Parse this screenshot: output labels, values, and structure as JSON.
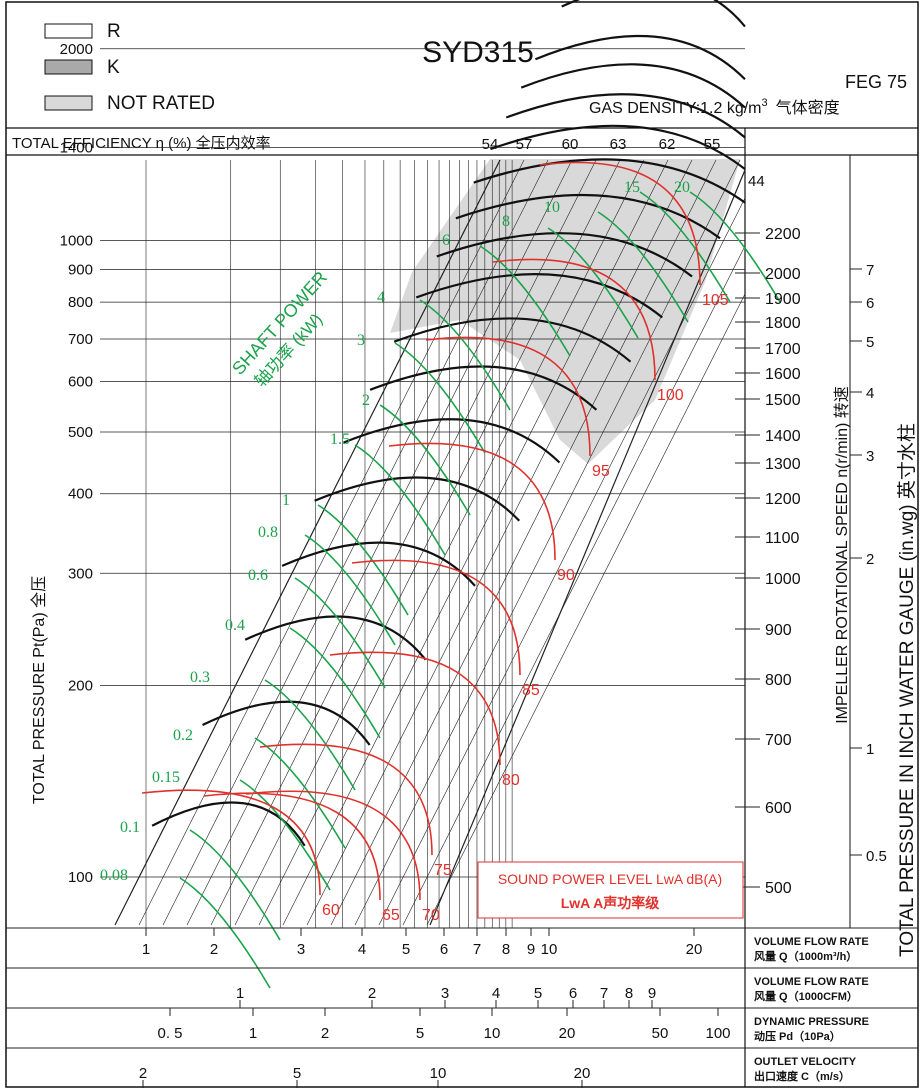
{
  "legend": {
    "items": [
      {
        "label": "R",
        "fill": "#ffffff"
      },
      {
        "label": "K",
        "fill": "#a9a9a9"
      },
      {
        "label": "NOT RATED",
        "fill": "#d9d9d9"
      }
    ]
  },
  "header": {
    "title": "SYD315",
    "code": "FEG 75",
    "gas_density_prefix": "GAS DENSITY:1.2 kg/m",
    "gas_density_sup": "3",
    "gas_density_suffix": "气体密度"
  },
  "efficiency_row": {
    "label": "TOTAL EFFICIENCY η (%) 全压内效率",
    "values": [
      "54",
      "57",
      "60",
      "63",
      "62",
      "55"
    ]
  },
  "colors": {
    "speed_curve": "#111111",
    "shaft_power": "#1aa34a",
    "sound_level": "#e0312c",
    "not_rated_fill": "#d9d9d9",
    "grid": "#222222"
  },
  "chart_data": {
    "type": "line",
    "title": "SYD315",
    "scale": "log-log",
    "xlabel": "VOLUME FLOW RATE 风量 Q（1000m³/h）",
    "ylabel": "TOTAL PRESSURE Pt(Pa) 全压",
    "left_ticks": [
      "2000",
      "1400",
      "1000",
      "900",
      "800",
      "700",
      "600",
      "500",
      "400",
      "300",
      "200",
      "100"
    ],
    "speed_axis": {
      "label": "IMPELLER ROTATIONAL SPEED n(r/min) 转速",
      "top_mark": "44",
      "ticks": [
        "2200",
        "2000",
        "1900",
        "1800",
        "1700",
        "1600",
        "1500",
        "1400",
        "1300",
        "1200",
        "1100",
        "1000",
        "900",
        "800",
        "700",
        "600",
        "500"
      ]
    },
    "water_gauge_axis": {
      "label": "TOTAL PRESSURE IN INCH WATER GAUGE (in.wg) 英寸水柱",
      "ticks": [
        "7",
        "6",
        "5",
        "4",
        "3",
        "2",
        "1",
        "0.5"
      ]
    },
    "shaft_power": {
      "label": "SHAFT POWER",
      "label_cn": "轴功率 (kW)",
      "values": [
        "20",
        "15",
        "10",
        "8",
        "6",
        "4",
        "3",
        "2",
        "1.5",
        "1",
        "0.8",
        "0.6",
        "0.4",
        "0.3",
        "0.2",
        "0.15",
        "0.1",
        "0.08"
      ]
    },
    "sound_power": {
      "label": "SOUND POWER LEVEL LwA dB(A)",
      "label_cn": "LwA A声功率级",
      "values": [
        "105",
        "100",
        "95",
        "90",
        "85",
        "80",
        "75",
        "70",
        "65",
        "60"
      ]
    },
    "bottom_scales": [
      {
        "label": "VOLUME FLOW RATE",
        "label_cn": "风量 Q（1000m³/h）",
        "ticks": [
          "1",
          "2",
          "3",
          "4",
          "5",
          "6",
          "7",
          "8",
          "9",
          "10",
          "20"
        ]
      },
      {
        "label": "VOLUME FLOW RATE",
        "label_cn": "风量 Q（1000CFM）",
        "ticks": [
          "1",
          "2",
          "3",
          "4",
          "5",
          "6",
          "7",
          "8",
          "9",
          "10"
        ]
      },
      {
        "label": "DYNAMIC PRESSURE",
        "label_cn": "动压 Pd（10Pa）",
        "ticks": [
          "0. 5",
          "1",
          "2",
          "5",
          "10",
          "20",
          "50",
          "100"
        ]
      },
      {
        "label": "OUTLET VELOCITY",
        "label_cn": "出口速度 C（m/s）",
        "ticks": [
          "2",
          "5",
          "10",
          "20"
        ]
      }
    ]
  }
}
